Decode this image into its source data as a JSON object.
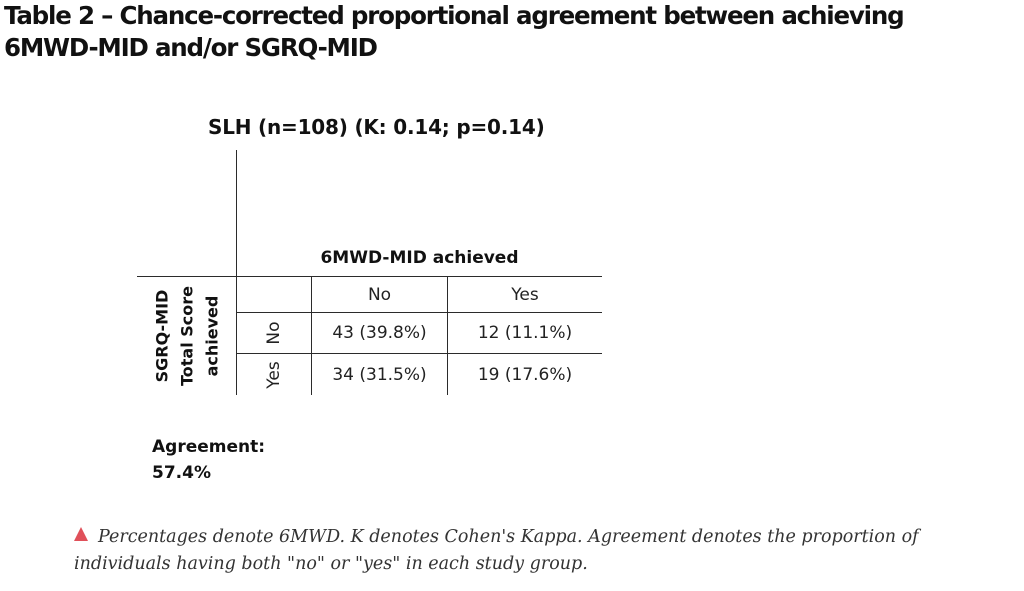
{
  "title": "Table 2 – Chance-corrected proportional agreement between achieving 6MWD-MID and/or SGRQ-MID",
  "subtitle": "SLH (n=108) (K: 0.14; p=0.14)",
  "table": {
    "column_group_label": "6MWD-MID achieved",
    "column_headers": [
      "No",
      "Yes"
    ],
    "row_group_label": [
      "SGRQ-MID",
      "Total Score",
      "achieved"
    ],
    "row_headers": [
      "No",
      "Yes"
    ],
    "rows": [
      [
        "43 (39.8%)",
        "12 (11.1%)"
      ],
      [
        "34 (31.5%)",
        "19 (17.6%)"
      ]
    ]
  },
  "agreement": {
    "label": "Agreement:",
    "value": "57.4%"
  },
  "footnote": {
    "icon": "caret-up-icon",
    "icon_color": "#e0505a",
    "text": "Percentages denote 6MWD. K denotes Cohen's Kappa. Agreement denotes the proportion of individuals having both \"no\" or \"yes\" in each study group."
  }
}
